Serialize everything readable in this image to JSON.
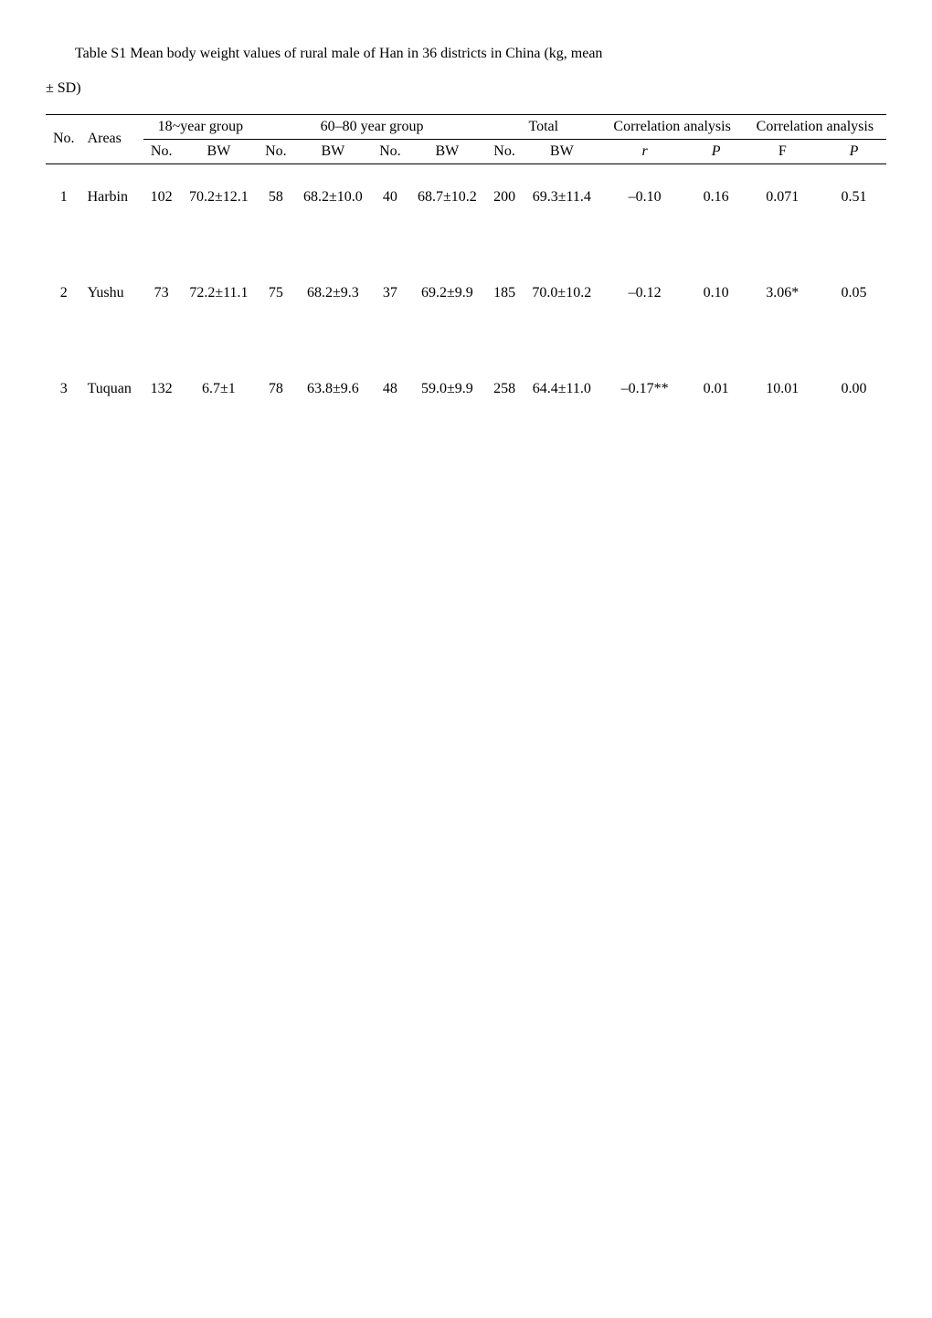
{
  "caption_line1": "Table S1 Mean body weight values of rural male of Han in 36 districts in China (kg, mean",
  "caption_line2": "± SD)",
  "head": {
    "no": "No.",
    "areas": "Areas",
    "g18": "18~year group",
    "g60": "60–80 year group",
    "total": "Total",
    "corr": "Correlation analysis",
    "sub_no": "No.",
    "sub_bw": "BW",
    "r": "r",
    "p": "P",
    "f": "F"
  },
  "rows": [
    {
      "n": "1",
      "area": "Harbin",
      "g18_no": "102",
      "g18_bw": "70.2±12.1",
      "g60_no": "58",
      "g60_bw": "68.2±10.0",
      "mid_no": "40",
      "mid_bw": "68.7±10.2",
      "tot_no": "200",
      "tot_bw": "69.3±11.4",
      "r1": "–0.10",
      "p1": "0.16",
      "f1": "0.071",
      "p2": "0.51"
    },
    {
      "n": "2",
      "area": "Yushu",
      "g18_no": "73",
      "g18_bw": "72.2±11.1",
      "g60_no": "75",
      "g60_bw": "68.2±9.3",
      "mid_no": "37",
      "mid_bw": "69.2±9.9",
      "tot_no": "185",
      "tot_bw": "70.0±10.2",
      "r1": "–0.12",
      "p1": "0.10",
      "f1": "3.06*",
      "p2": "0.05"
    },
    {
      "n": "3",
      "area": "Tuquan",
      "g18_no": "132",
      "g18_bw": "6.7±1",
      "g60_no": "78",
      "g60_bw": "63.8±9.6",
      "mid_no": "48",
      "mid_bw": "59.0±9.9",
      "tot_no": "258",
      "tot_bw": "64.4±11.0",
      "r1": "–0.17**",
      "p1": "0.01",
      "f1": "10.01",
      "p2": "0.00"
    }
  ]
}
